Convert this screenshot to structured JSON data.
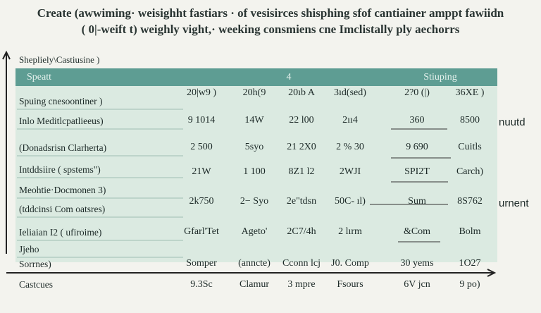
{
  "header": {
    "title": "Create (awwiming· weisighht fastiars · of vesisirces shisphing sfof cantiainer amppt fawiidn",
    "subtitle": "( 0|-weift t) weighly vight,· weeking consmiens cne Imclistally ply aechorrs"
  },
  "table": {
    "caption": "Shepliely\\Castiusine )",
    "band": [
      "Speatt",
      "4",
      "Stiuping"
    ],
    "rows": [
      {
        "label": "Spuing cnesoontiner )",
        "cells": [
          "20|w9 )",
          "20h(9",
          "20ıb A",
          "3ıd(sed)",
          "2?0 (|)",
          "36XE )"
        ]
      },
      {
        "label": "Inlo Meditlcpatlieeus)",
        "cells": [
          "9 1014",
          "14W",
          "22 l00",
          "2ıı4",
          "360",
          "8500"
        ],
        "note": "nuutd"
      },
      {
        "label": "(Donadsrisn Clarherta)",
        "cells": [
          "2 500",
          "5syo",
          "21 2X0",
          "2 % 30",
          "9 690",
          "Cuitls"
        ]
      },
      {
        "label": "Intddsiire ( spstems\")",
        "cells": [
          "21W",
          "1 100",
          "8Z1 l2",
          "2WJI",
          "SPI2T",
          "Carch)"
        ]
      },
      {
        "label": "Meohtie·Docmonen 3)",
        "cells": []
      },
      {
        "label": "(tddcinsi Com oatsres)",
        "cells": [
          "2k750",
          "2− Syo",
          "2e\"tdsn",
          "50C- ıl)",
          "Sum",
          "8S762"
        ],
        "note": "urnent"
      },
      {
        "label": "Ieliaian I2 ( ufiroime)",
        "cells": [
          "Gfarl'Tet",
          "Ageto'",
          "2C7/4h",
          "2 lırm",
          "&Com",
          "Bolm"
        ]
      },
      {
        "label": "Jjeho",
        "cells": []
      },
      {
        "label": "Sorrnes)",
        "cells": [
          "Somper",
          "(anncte)",
          "Cconn lcj",
          "J0. Comp",
          "30 yems",
          "1O27"
        ]
      },
      {
        "label": "Castcues",
        "cells": [
          "9.3Sc",
          "Clamur",
          "3 mpre",
          "Fsours",
          "6V jcn",
          "9 po)"
        ]
      }
    ]
  }
}
